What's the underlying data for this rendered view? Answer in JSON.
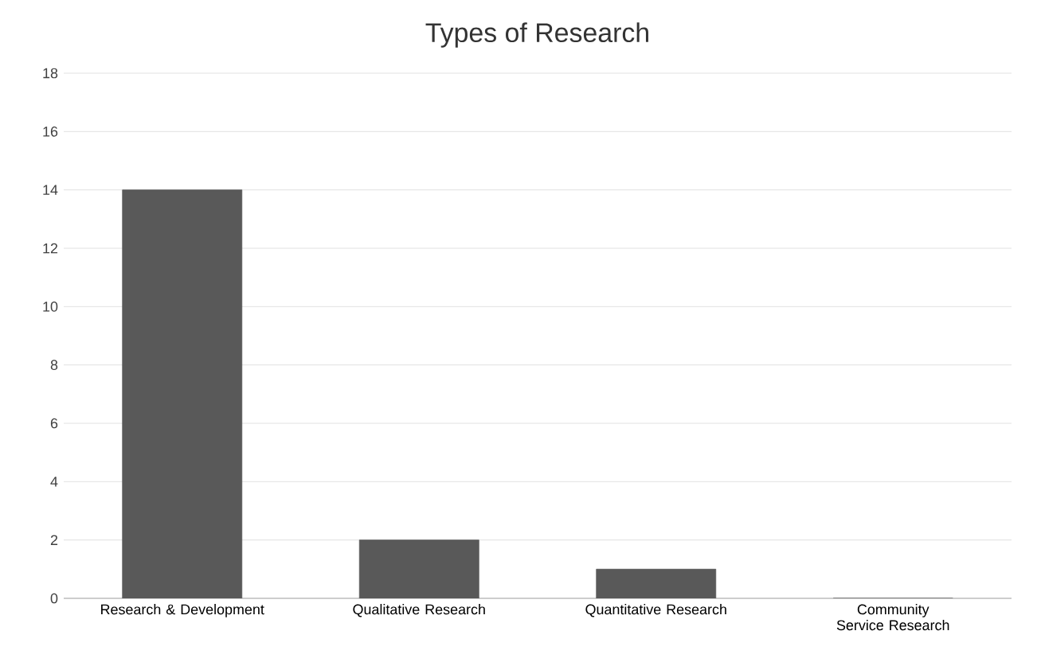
{
  "chart_data": {
    "type": "bar",
    "title": "Types of Research",
    "categories": [
      "Research & Development",
      "Qualitative Research",
      "Quantitative Research",
      "Community Service Research"
    ],
    "values": [
      14,
      2,
      1,
      0
    ],
    "color": "#595959",
    "ylim": [
      0,
      18
    ],
    "yticks": [
      0,
      2,
      4,
      6,
      8,
      10,
      12,
      14,
      16,
      18
    ],
    "grid": "y"
  }
}
